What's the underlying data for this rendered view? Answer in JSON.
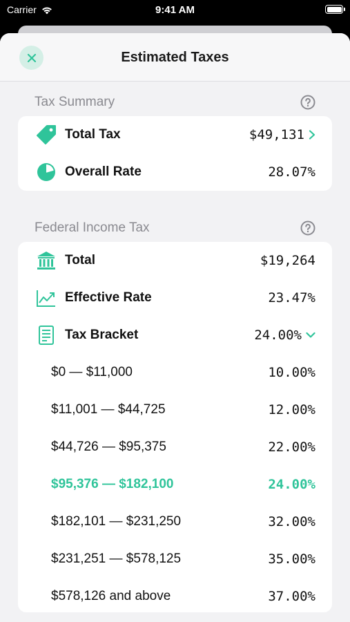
{
  "status_bar": {
    "carrier": "Carrier",
    "time": "9:41 AM"
  },
  "header": {
    "title": "Estimated Taxes",
    "close_icon": "close-icon"
  },
  "tax_summary": {
    "title": "Tax Summary",
    "rows": [
      {
        "label": "Total Tax",
        "value": "$49,131",
        "icon": "tag-icon"
      },
      {
        "label": "Overall Rate",
        "value": "28.07%",
        "icon": "pie-chart-icon"
      }
    ]
  },
  "federal": {
    "title": "Federal Income Tax",
    "rows": [
      {
        "label": "Total",
        "value": "$19,264",
        "icon": "bank-icon"
      },
      {
        "label": "Effective Rate",
        "value": "23.47%",
        "icon": "trend-chart-icon"
      },
      {
        "label": "Tax Bracket",
        "value": "24.00%",
        "icon": "document-icon"
      }
    ],
    "brackets": [
      {
        "range": "$0 — $11,000",
        "rate": "10.00%"
      },
      {
        "range": "$11,001 — $44,725",
        "rate": "12.00%"
      },
      {
        "range": "$44,726 — $95,375",
        "rate": "22.00%"
      },
      {
        "range": "$95,376 — $182,100",
        "rate": "24.00%",
        "active": true
      },
      {
        "range": "$182,101 — $231,250",
        "rate": "32.00%"
      },
      {
        "range": "$231,251 — $578,125",
        "rate": "35.00%"
      },
      {
        "range": "$578,126 and above",
        "rate": "37.00%"
      }
    ]
  },
  "colors": {
    "accent": "#2fc49a",
    "background": "#f2f2f4"
  }
}
